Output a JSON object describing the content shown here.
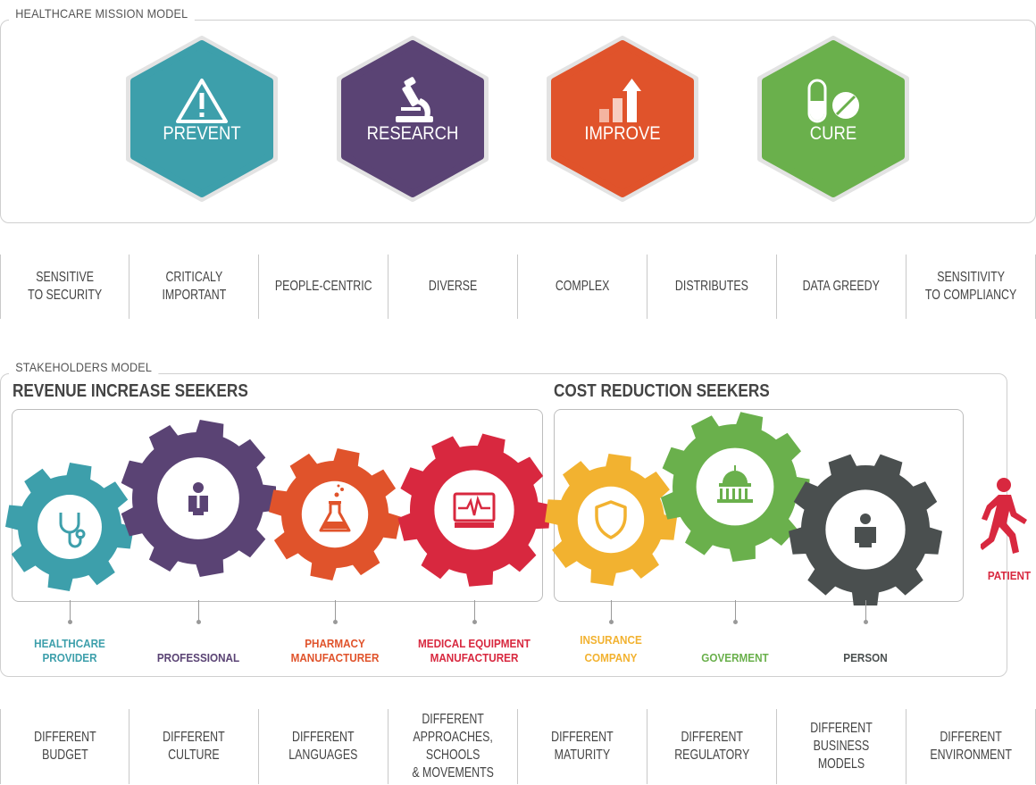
{
  "mission": {
    "title": "HEALTHCARE MISSION MODEL",
    "items": [
      {
        "label": "PREVENT",
        "icon": "warning-icon",
        "color": "#3d9fab"
      },
      {
        "label": "RESEARCH",
        "icon": "microscope-icon",
        "color": "#5a4374"
      },
      {
        "label": "IMPROVE",
        "icon": "bar-chart-up-icon",
        "color": "#e0532b"
      },
      {
        "label": "CURE",
        "icon": "pill-icon",
        "color": "#6ab04c"
      }
    ]
  },
  "traits": [
    {
      "line1": "SENSITIVE",
      "line2": "TO SECURITY"
    },
    {
      "line1": "CRITICALY",
      "line2": "IMPORTANT"
    },
    {
      "line1": "PEOPLE-CENTRIC",
      "line2": ""
    },
    {
      "line1": "DIVERSE",
      "line2": ""
    },
    {
      "line1": "COMPLEX",
      "line2": ""
    },
    {
      "line1": "DISTRIBUTES",
      "line2": ""
    },
    {
      "line1": "DATA GREEDY",
      "line2": ""
    },
    {
      "line1": "SENSITIVITY",
      "line2": "TO COMPLIANCY"
    }
  ],
  "stakeholders": {
    "title": "STAKEHOLDERS MODEL",
    "revenue_title": "REVENUE INCREASE SEEKERS",
    "cost_title": "COST REDUCTION SEEKERS",
    "gears": [
      {
        "label1": "HEALTHCARE",
        "label2": "PROVIDER",
        "icon": "stethoscope-icon",
        "color": "#3d9fab"
      },
      {
        "label1": "PROFESSIONAL",
        "label2": "",
        "icon": "doctor-icon",
        "color": "#5a4374"
      },
      {
        "label1": "PHARMACY",
        "label2": "MANUFACTURER",
        "icon": "flask-icon",
        "color": "#e0532b"
      },
      {
        "label1": "MEDICAL EQUIPMENT",
        "label2": "MANUFACTURER",
        "icon": "heart-monitor-icon",
        "color": "#d8283f"
      },
      {
        "label1": "INSURANCE",
        "label2": "COMPANY",
        "icon": "shield-icon",
        "color": "#f2b230"
      },
      {
        "label1": "GOVERMENT",
        "label2": "",
        "icon": "capitol-icon",
        "color": "#6ab04c"
      },
      {
        "label1": "PERSON",
        "label2": "",
        "icon": "person-icon",
        "color": "#4a4f4f"
      }
    ],
    "patient": {
      "label": "PATIENT",
      "icon": "walking-person-icon",
      "color": "#d8283f"
    }
  },
  "differences": [
    {
      "lines": [
        "DIFFERENT",
        "BUDGET"
      ]
    },
    {
      "lines": [
        "DIFFERENT",
        "CULTURE"
      ]
    },
    {
      "lines": [
        "DIFFERENT",
        "LANGUAGES"
      ]
    },
    {
      "lines": [
        "DIFFERENT",
        "APPROACHES,",
        "SCHOOLS",
        "& MOVEMENTS"
      ]
    },
    {
      "lines": [
        "DIFFERENT",
        "MATURITY"
      ]
    },
    {
      "lines": [
        "DIFFERENT",
        "REGULATORY"
      ]
    },
    {
      "lines": [
        "DIFFERENT",
        "BUSINESS MODELS"
      ]
    },
    {
      "lines": [
        "DIFFERENT",
        "ENVIRONMENT"
      ]
    }
  ]
}
